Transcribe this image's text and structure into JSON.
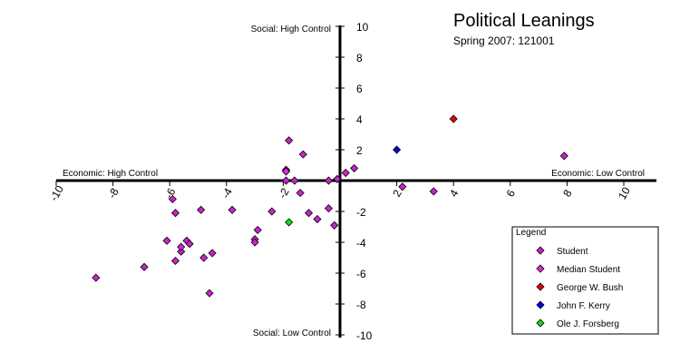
{
  "chart_data": {
    "type": "scatter",
    "title": "Political Leanings",
    "subtitle": "Spring 2007: 121001",
    "axis_labels": {
      "social_high": "Social: High Control",
      "social_low": "Social: Low Control",
      "economic_high": "Economic: High Control",
      "economic_low": "Economic: Low Control"
    },
    "xlim": [
      -10,
      10
    ],
    "ylim": [
      -10,
      10
    ],
    "x_ticks": [
      -10,
      -8,
      -6,
      -4,
      -2,
      2,
      4,
      6,
      8,
      10
    ],
    "y_ticks": [
      10,
      8,
      6,
      4,
      2,
      -2,
      -4,
      -6,
      -8,
      -10
    ],
    "grid": false,
    "legend": {
      "title": "Legend",
      "position": "bottom-right"
    },
    "series": [
      {
        "name": "Student",
        "color": "#cc22cc",
        "points": [
          {
            "x": -8.6,
            "y": -6.3
          },
          {
            "x": -6.9,
            "y": -5.6
          },
          {
            "x": -6.1,
            "y": -3.9
          },
          {
            "x": -5.8,
            "y": -5.2
          },
          {
            "x": -5.6,
            "y": -4.6
          },
          {
            "x": -5.6,
            "y": -4.3
          },
          {
            "x": -5.4,
            "y": -3.9
          },
          {
            "x": -5.3,
            "y": -4.1
          },
          {
            "x": -4.9,
            "y": -1.9
          },
          {
            "x": -4.8,
            "y": -5.0
          },
          {
            "x": -4.6,
            "y": -7.3
          },
          {
            "x": -4.5,
            "y": -4.7
          },
          {
            "x": -5.9,
            "y": -1.2
          },
          {
            "x": -5.8,
            "y": -2.1
          },
          {
            "x": -3.8,
            "y": -1.9
          },
          {
            "x": -3.0,
            "y": -3.8
          },
          {
            "x": -3.0,
            "y": -4.0
          },
          {
            "x": -2.9,
            "y": -3.2
          },
          {
            "x": -2.4,
            "y": -2.0
          },
          {
            "x": -1.9,
            "y": 0.7
          },
          {
            "x": -1.9,
            "y": 0.6
          },
          {
            "x": -1.9,
            "y": 0.0
          },
          {
            "x": -1.8,
            "y": 2.6
          },
          {
            "x": -1.6,
            "y": 0.0
          },
          {
            "x": -1.4,
            "y": -0.8
          },
          {
            "x": -1.3,
            "y": 1.7
          },
          {
            "x": -1.1,
            "y": -2.1
          },
          {
            "x": -0.8,
            "y": -2.5
          },
          {
            "x": -0.4,
            "y": 0.0
          },
          {
            "x": -0.4,
            "y": -1.8
          },
          {
            "x": -0.2,
            "y": -2.9
          },
          {
            "x": -0.1,
            "y": 0.1
          },
          {
            "x": 0.2,
            "y": 0.5
          },
          {
            "x": 0.5,
            "y": 0.8
          },
          {
            "x": 2.2,
            "y": -0.4
          },
          {
            "x": 3.3,
            "y": -0.7
          },
          {
            "x": 7.9,
            "y": 1.6
          }
        ]
      },
      {
        "name": "Median Student",
        "color": "#ee22ee",
        "points": [
          {
            "x": -1.9,
            "y": 0.6
          }
        ]
      },
      {
        "name": "George W. Bush",
        "color": "#ee0000",
        "points": [
          {
            "x": 4.0,
            "y": 4.0
          }
        ]
      },
      {
        "name": "John F. Kerry",
        "color": "#0000ee",
        "points": [
          {
            "x": 2.0,
            "y": 2.0
          }
        ]
      },
      {
        "name": "Ole J. Forsberg",
        "color": "#11dd11",
        "points": [
          {
            "x": -1.8,
            "y": -2.7
          }
        ]
      }
    ]
  }
}
